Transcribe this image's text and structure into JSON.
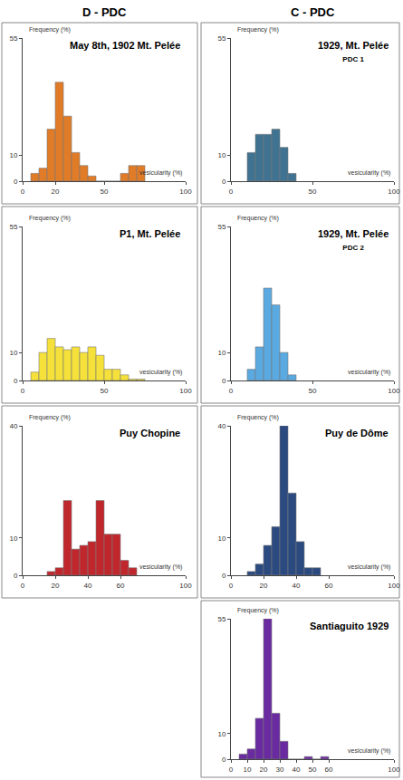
{
  "chart_data": [
    {
      "type": "histogram",
      "group": "D - PDC",
      "title": "May 8th, 1902 Mt. Pelée",
      "xlabel": "vesicularity (%)",
      "ylabel": "Frequency (%)",
      "bins": [
        5,
        10,
        15,
        20,
        25,
        30,
        35,
        40,
        45,
        50,
        55,
        60,
        65,
        70,
        75
      ],
      "values": [
        3,
        5,
        20,
        38,
        25,
        11,
        6,
        2,
        0,
        0,
        0,
        3,
        6,
        6
      ],
      "color": "#e07b28",
      "xlim": [
        0,
        100
      ],
      "ylim": [
        0,
        55
      ],
      "xticks": [
        0,
        20,
        50,
        100
      ],
      "yticks": [
        0,
        10,
        55
      ]
    },
    {
      "type": "histogram",
      "group": "D - PDC",
      "title": "P1, Mt. Pelée",
      "xlabel": "vesicularity (%)",
      "ylabel": "Frequency (%)",
      "bins": [
        5,
        10,
        15,
        20,
        25,
        30,
        35,
        40,
        45,
        50,
        55,
        60,
        65,
        70,
        75
      ],
      "values": [
        3,
        10,
        15,
        12,
        11,
        12,
        10,
        12,
        9,
        4,
        4,
        2,
        0.5,
        0.5
      ],
      "color": "#f5e13a",
      "xlim": [
        0,
        100
      ],
      "ylim": [
        0,
        55
      ],
      "xticks": [
        0,
        50,
        100
      ],
      "yticks": [
        0,
        10,
        55
      ]
    },
    {
      "type": "histogram",
      "group": "D - PDC",
      "title": "Puy Chopine",
      "xlabel": "vesicularity (%)",
      "ylabel": "Frequency (%)",
      "bins": [
        15,
        20,
        25,
        30,
        35,
        40,
        45,
        50,
        55,
        60,
        65,
        70
      ],
      "values": [
        1,
        2,
        20,
        7,
        8,
        9,
        20,
        11,
        11,
        4,
        2
      ],
      "color": "#c0272d",
      "xlim": [
        0,
        100
      ],
      "ylim": [
        0,
        40
      ],
      "xticks": [
        0,
        20,
        40,
        60,
        100
      ],
      "yticks": [
        0,
        10,
        40
      ]
    },
    {
      "type": "histogram",
      "group": "C - PDC",
      "title": "1929, Mt. Pelée",
      "subtitle": "PDC 1",
      "xlabel": "vesicularity (%)",
      "ylabel": "Frequency (%)",
      "bins": [
        10,
        15,
        20,
        25,
        30,
        35,
        40
      ],
      "values": [
        11,
        18,
        18,
        20,
        13,
        3
      ],
      "color": "#3f7391",
      "xlim": [
        0,
        100
      ],
      "ylim": [
        0,
        55
      ],
      "xticks": [
        0,
        50,
        100
      ],
      "yticks": [
        0,
        10,
        55
      ]
    },
    {
      "type": "histogram",
      "group": "C - PDC",
      "title": "1929, Mt. Pelée",
      "subtitle": "PDC 2",
      "xlabel": "vesicularity (%)",
      "ylabel": "Frequency (%)",
      "bins": [
        10,
        15,
        20,
        25,
        30,
        35,
        40
      ],
      "values": [
        4,
        12,
        33,
        27,
        10,
        2
      ],
      "color": "#5aa9e0",
      "xlim": [
        0,
        100
      ],
      "ylim": [
        0,
        55
      ],
      "xticks": [
        0,
        50,
        100
      ],
      "yticks": [
        0,
        10,
        55
      ]
    },
    {
      "type": "histogram",
      "group": "C - PDC",
      "title": "Puy de Dôme",
      "xlabel": "vesicularity (%)",
      "ylabel": "Frequency (%)",
      "bins": [
        10,
        15,
        20,
        25,
        30,
        35,
        40,
        45,
        50,
        55
      ],
      "values": [
        1,
        3,
        8,
        13,
        40,
        22,
        9,
        2,
        2
      ],
      "color": "#2b4a80",
      "xlim": [
        0,
        100
      ],
      "ylim": [
        0,
        40
      ],
      "xticks": [
        0,
        20,
        40,
        60,
        100
      ],
      "yticks": [
        0,
        10,
        40
      ]
    },
    {
      "type": "histogram",
      "group": "C - PDC",
      "title": "Santiaguito 1929",
      "xlabel": "vesicularity (%)",
      "ylabel": "Frequency (%)",
      "bins": [
        5,
        10,
        15,
        20,
        25,
        30,
        35,
        40,
        45,
        50,
        55,
        60
      ],
      "values": [
        2,
        4,
        16,
        55,
        18,
        7,
        0,
        0,
        1,
        0,
        1
      ],
      "color": "#6a2aa0",
      "xlim": [
        0,
        100
      ],
      "ylim": [
        0,
        55
      ],
      "xticks": [
        0,
        10,
        20,
        30,
        40,
        50,
        60,
        100
      ],
      "yticks": [
        0,
        10,
        55
      ]
    }
  ]
}
